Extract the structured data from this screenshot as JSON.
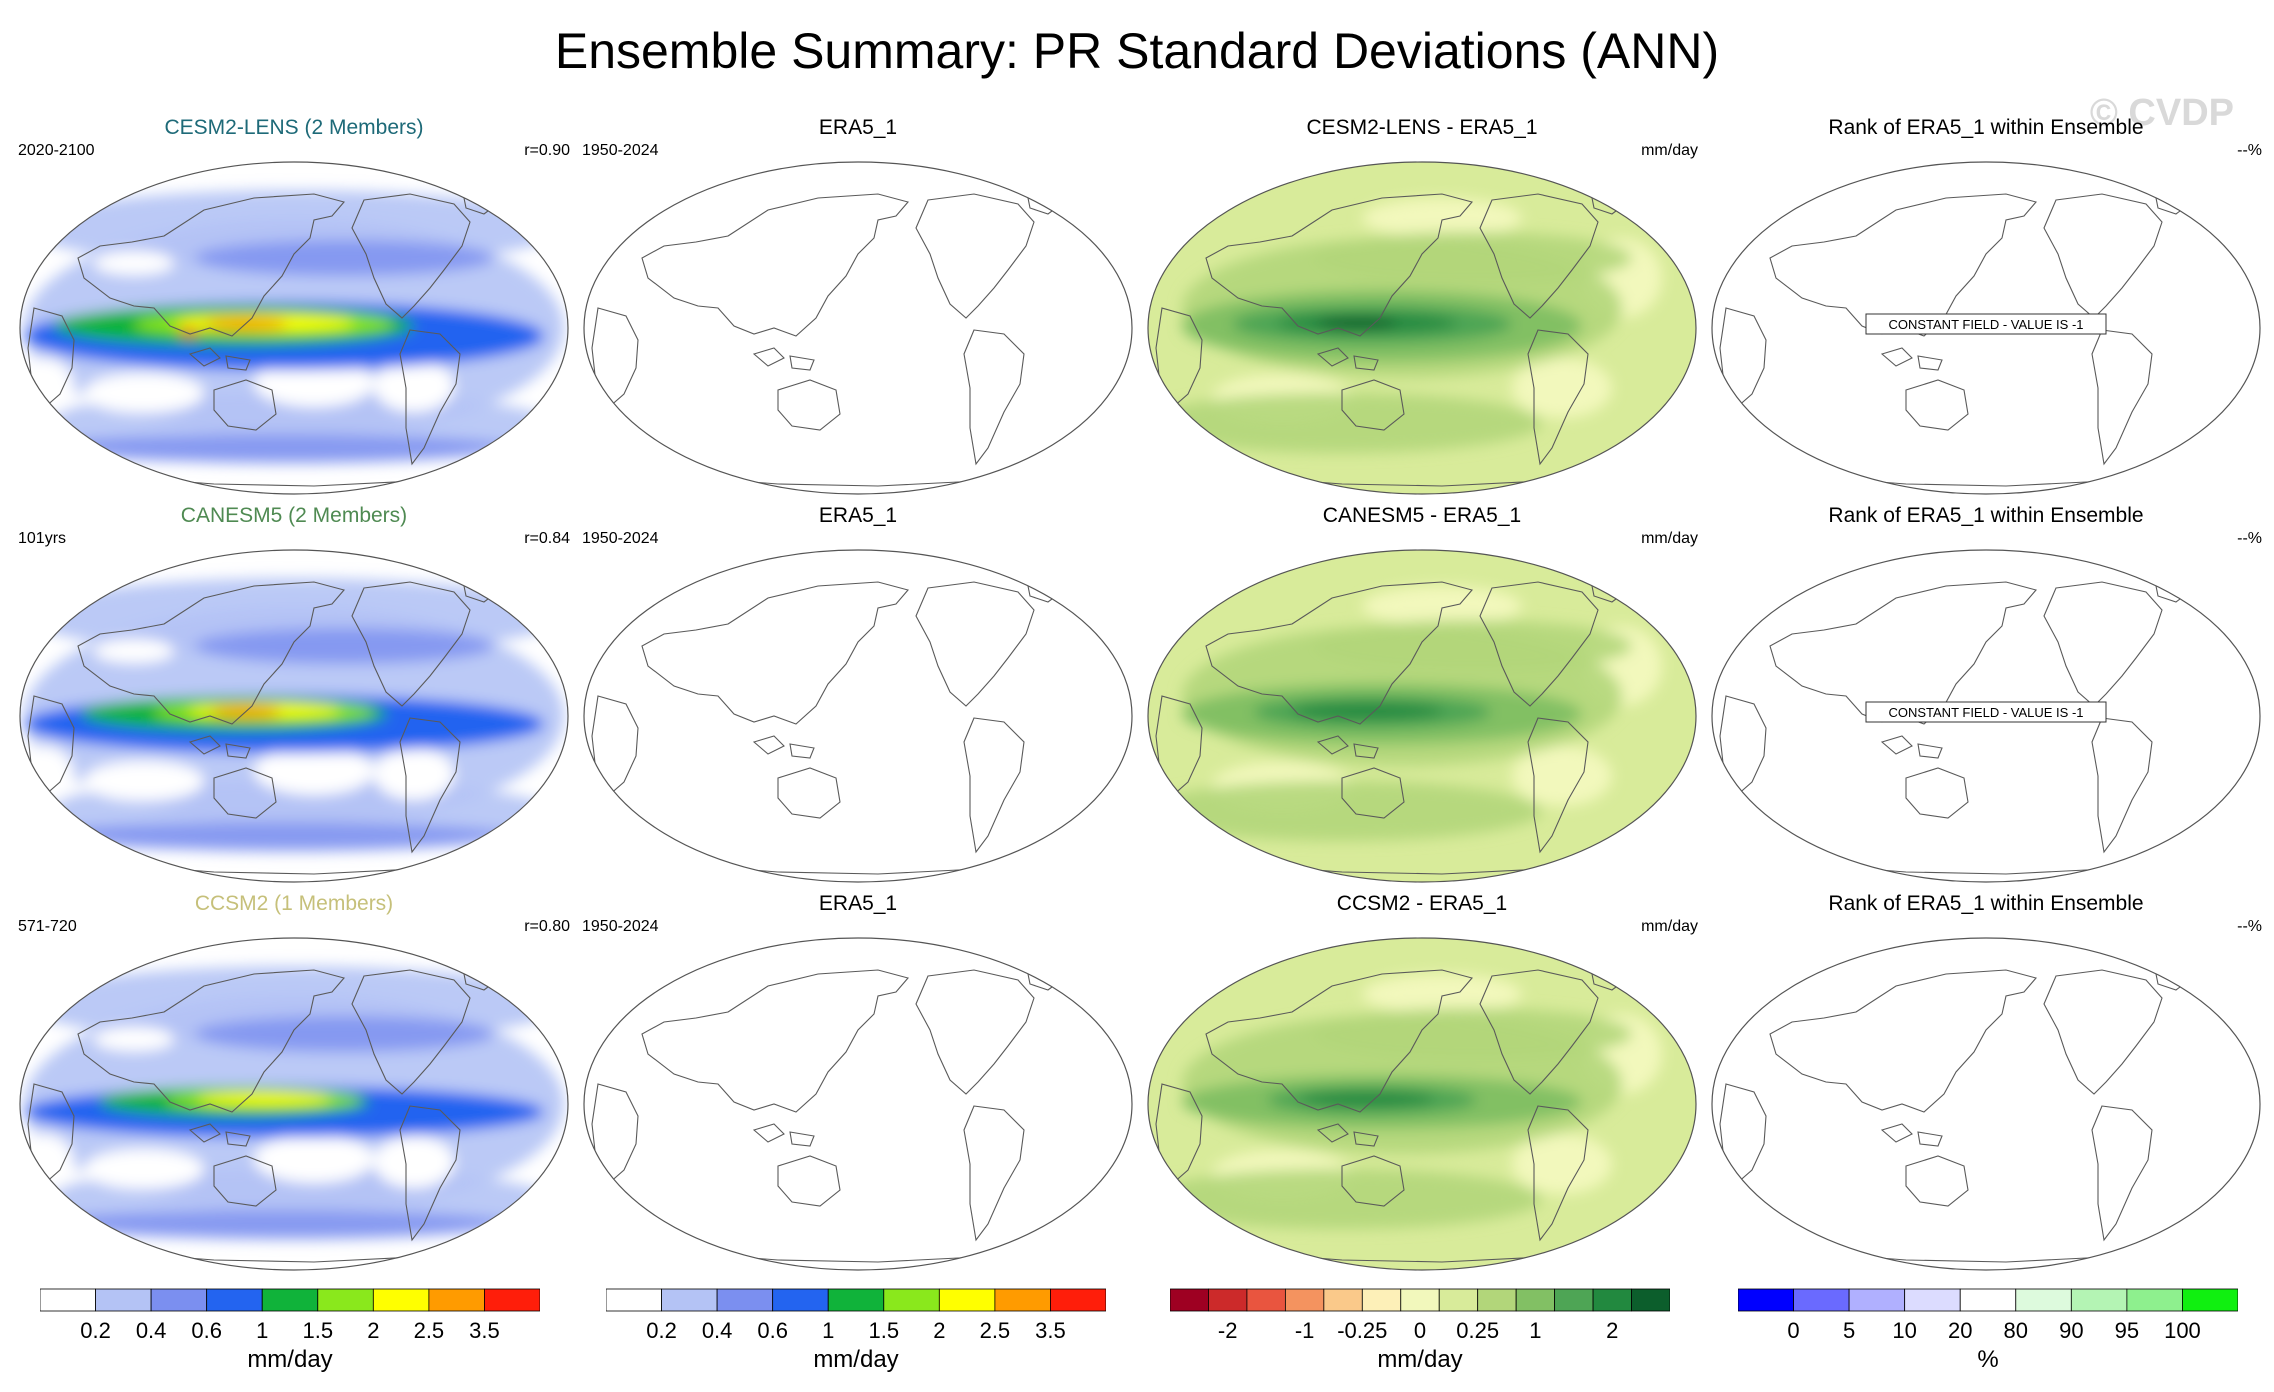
{
  "title": "Ensemble Summary: PR Standard Deviations (ANN)",
  "watermark": "© CVDP",
  "chart_data": {
    "type": "map-grid",
    "rows": [
      {
        "model_title": "CESM2-LENS (2 Members)",
        "model_title_color": "#1e6a78",
        "period": "2020-2100",
        "r": "r=0.90",
        "obs_title": "ERA5_1",
        "obs_period": "1950-2024",
        "diff_title": "CESM2-LENS - ERA5_1",
        "diff_units": "mm/day",
        "rank_title": "Rank of ERA5_1 within Ensemble",
        "rank_value": "--%",
        "rank_note": "CONSTANT FIELD - VALUE IS -1",
        "model_intensity": 1.0
      },
      {
        "model_title": "CANESM5 (2 Members)",
        "model_title_color": "#4f8a52",
        "period": "101yrs",
        "r": "r=0.84",
        "obs_title": "ERA5_1",
        "obs_period": "1950-2024",
        "diff_title": "CANESM5 - ERA5_1",
        "diff_units": "mm/day",
        "rank_title": "Rank of ERA5_1 within Ensemble",
        "rank_value": "--%",
        "rank_note": "CONSTANT FIELD - VALUE IS -1",
        "model_intensity": 0.85
      },
      {
        "model_title": "CCSM2 (1 Members)",
        "model_title_color": "#c6c07a",
        "period": "571-720",
        "r": "r=0.80",
        "obs_title": "ERA5_1",
        "obs_period": "1950-2024",
        "diff_title": "CCSM2 - ERA5_1",
        "diff_units": "mm/day",
        "rank_title": "Rank of ERA5_1 within Ensemble",
        "rank_value": "--%",
        "rank_note": "",
        "model_intensity": 0.75
      }
    ],
    "colorbars": [
      {
        "name": "pr-sd",
        "colors": [
          "#ffffff",
          "#b4c3f5",
          "#7b8ff0",
          "#2364f0",
          "#10b33a",
          "#8ae81c",
          "#ffff00",
          "#ff9b00",
          "#ff1e0a"
        ],
        "labels": [
          "0.2",
          "0.4",
          "0.6",
          "1",
          "1.5",
          "2",
          "2.5",
          "3.5"
        ],
        "units": "mm/day"
      },
      {
        "name": "pr-sd-obs",
        "colors": [
          "#ffffff",
          "#b4c3f5",
          "#7b8ff0",
          "#2364f0",
          "#10b33a",
          "#8ae81c",
          "#ffff00",
          "#ff9b00",
          "#ff1e0a"
        ],
        "labels": [
          "0.2",
          "0.4",
          "0.6",
          "1",
          "1.5",
          "2",
          "2.5",
          "3.5"
        ],
        "units": "mm/day"
      },
      {
        "name": "pr-diff",
        "colors": [
          "#9e0022",
          "#cc2a2a",
          "#e9553f",
          "#f4935f",
          "#fac98a",
          "#fdf0b8",
          "#f2f8bc",
          "#d8eb9a",
          "#b2d67a",
          "#82c064",
          "#4ea555",
          "#22893f",
          "#0c5e2c"
        ],
        "labels": [
          "-2",
          "-1",
          "-0.25",
          "0",
          "0.25",
          "1",
          "2"
        ],
        "label_slots": [
          1.5,
          3.5,
          5.0,
          6.5,
          8.0,
          9.5,
          11.5
        ],
        "units": "mm/day"
      },
      {
        "name": "rank",
        "colors": [
          "#0000ff",
          "#6a6aff",
          "#b0b0ff",
          "#dcdcff",
          "#ffffff",
          "#ddfadd",
          "#b4f4b4",
          "#8ef08e",
          "#10f010"
        ],
        "labels": [
          "0",
          "5",
          "10",
          "20",
          "80",
          "90",
          "95",
          "100"
        ],
        "units": "%"
      }
    ]
  }
}
